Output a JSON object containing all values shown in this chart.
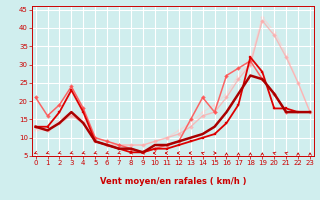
{
  "bg_color": "#d0eeee",
  "grid_color": "#b0dddd",
  "xlabel": "Vent moyen/en rafales ( km/h )",
  "xlim": [
    -0.3,
    23.3
  ],
  "ylim": [
    5,
    46
  ],
  "yticks": [
    5,
    10,
    15,
    20,
    25,
    30,
    35,
    40,
    45
  ],
  "xticks": [
    0,
    1,
    2,
    3,
    4,
    5,
    6,
    7,
    8,
    9,
    10,
    11,
    12,
    13,
    14,
    15,
    16,
    17,
    18,
    19,
    20,
    21,
    22,
    23
  ],
  "series": [
    {
      "x": [
        0,
        1,
        2,
        3,
        4,
        5,
        6,
        7,
        8,
        9,
        10,
        11,
        12,
        13,
        14,
        15,
        16,
        17,
        18,
        19,
        20,
        21,
        22,
        23
      ],
      "y": [
        13,
        13,
        17,
        23,
        17,
        9,
        8,
        7,
        6,
        6,
        7,
        7,
        8,
        9,
        10,
        11,
        14,
        19,
        32,
        28,
        18,
        18,
        17,
        17
      ],
      "color": "#dd0000",
      "lw": 1.3,
      "marker": "s",
      "ms": 2.0,
      "alpha": 1.0,
      "zorder": 4
    },
    {
      "x": [
        0,
        1,
        2,
        3,
        4,
        5,
        6,
        7,
        8,
        9,
        10,
        11,
        12,
        13,
        14,
        15,
        16,
        17,
        18,
        19,
        20,
        21
      ],
      "y": [
        21,
        16,
        19,
        24,
        18,
        10,
        9,
        8,
        7,
        6,
        7,
        8,
        9,
        15,
        21,
        17,
        27,
        29,
        31,
        26,
        22,
        17
      ],
      "color": "#ff5555",
      "lw": 1.1,
      "marker": "D",
      "ms": 2.0,
      "alpha": 0.9,
      "zorder": 3
    },
    {
      "x": [
        0,
        1,
        2,
        3,
        4,
        5,
        6,
        7,
        8,
        9,
        10,
        11,
        12,
        13,
        14,
        15,
        16,
        17,
        18,
        19,
        20,
        21,
        22,
        23
      ],
      "y": [
        13,
        12,
        14,
        17,
        14,
        9,
        8,
        7,
        7,
        6,
        8,
        8,
        9,
        10,
        11,
        13,
        17,
        22,
        27,
        26,
        22,
        17,
        17,
        17
      ],
      "color": "#aa0000",
      "lw": 1.8,
      "marker": null,
      "ms": 0,
      "alpha": 1.0,
      "zorder": 5
    },
    {
      "x": [
        0,
        1,
        2,
        3,
        4,
        5,
        6,
        7,
        8,
        9,
        10,
        11,
        12,
        13,
        14,
        15,
        16,
        17,
        18,
        19,
        20,
        21,
        22,
        23
      ],
      "y": [
        13,
        12,
        14,
        16,
        14,
        9,
        8,
        8,
        8,
        8,
        9,
        10,
        11,
        13,
        16,
        17,
        21,
        26,
        30,
        42,
        38,
        32,
        25,
        17
      ],
      "color": "#ffaaaa",
      "lw": 1.0,
      "marker": "D",
      "ms": 2.0,
      "alpha": 0.75,
      "zorder": 2
    },
    {
      "x": [
        0,
        1,
        2,
        3,
        4,
        5,
        6,
        7,
        8,
        9,
        10,
        11,
        12,
        13,
        14,
        15,
        16,
        17,
        18,
        19,
        20,
        21,
        22,
        23
      ],
      "y": [
        12,
        12,
        15,
        17,
        15,
        10,
        9,
        8,
        8,
        8,
        9,
        10,
        12,
        14,
        17,
        19,
        22,
        27,
        31,
        43,
        39,
        33,
        25,
        17
      ],
      "color": "#ffcccc",
      "lw": 0.9,
      "marker": "D",
      "ms": 2.0,
      "alpha": 0.65,
      "zorder": 1
    }
  ],
  "arrows": [
    [
      0,
      225
    ],
    [
      1,
      225
    ],
    [
      2,
      225
    ],
    [
      3,
      225
    ],
    [
      4,
      225
    ],
    [
      5,
      225
    ],
    [
      6,
      225
    ],
    [
      7,
      225
    ],
    [
      8,
      225
    ],
    [
      9,
      225
    ],
    [
      10,
      270
    ],
    [
      11,
      270
    ],
    [
      12,
      270
    ],
    [
      13,
      270
    ],
    [
      14,
      315
    ],
    [
      15,
      90
    ],
    [
      16,
      0
    ],
    [
      17,
      0
    ],
    [
      18,
      0
    ],
    [
      19,
      0
    ],
    [
      20,
      315
    ],
    [
      21,
      315
    ],
    [
      22,
      0
    ],
    [
      23,
      0
    ]
  ],
  "tick_fontsize": 5.0,
  "label_fontsize": 6.0,
  "tick_color": "#cc0000",
  "label_color": "#cc0000"
}
